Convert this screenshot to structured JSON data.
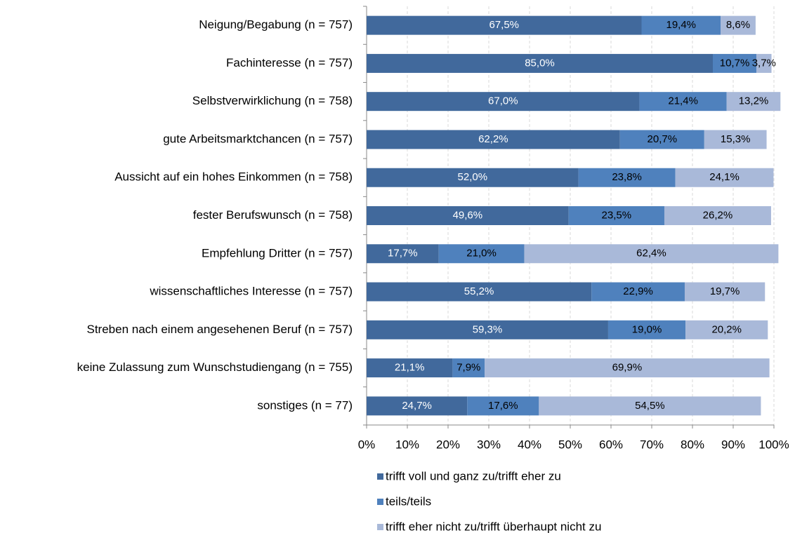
{
  "chart_data": {
    "type": "stacked-bar-horizontal",
    "categories": [
      "Neigung/Begabung (n = 757)",
      "Fachinteresse (n = 757)",
      "Selbstverwirklichung (n = 758)",
      "gute Arbeitsmarktchancen (n = 757)",
      "Aussicht auf ein hohes Einkommen (n = 758)",
      "fester Berufswunsch (n = 758)",
      "Empfehlung Dritter (n = 757)",
      "wissenschaftliches Interesse (n = 757)",
      "Streben nach einem angesehenen Beruf (n = 757)",
      "keine Zulassung zum Wunschstudiengang (n = 755)",
      "sonstiges (n = 77)"
    ],
    "series": [
      {
        "name": "trifft voll und ganz zu/trifft eher zu",
        "color": "#41699c",
        "label_color": "#ffffff",
        "values": [
          67.5,
          85.0,
          67.0,
          62.2,
          52.0,
          49.6,
          17.7,
          55.2,
          59.3,
          21.1,
          24.7
        ],
        "value_labels": [
          "67,5%",
          "85,0%",
          "67,0%",
          "62,2%",
          "52,0%",
          "49,6%",
          "17,7%",
          "55,2%",
          "59,3%",
          "21,1%",
          "24,7%"
        ]
      },
      {
        "name": "teils/teils",
        "color": "#4f81bd",
        "label_color": "#000000",
        "values": [
          19.4,
          10.7,
          21.4,
          20.7,
          23.8,
          23.5,
          21.0,
          22.9,
          19.0,
          7.9,
          17.6
        ],
        "value_labels": [
          "19,4%",
          "10,7%",
          "21,4%",
          "20,7%",
          "23,8%",
          "23,5%",
          "21,0%",
          "22,9%",
          "19,0%",
          "7,9%",
          "17,6%"
        ]
      },
      {
        "name": "trifft eher nicht zu/trifft überhaupt nicht zu",
        "color": "#a9b9d9",
        "label_color": "#000000",
        "values": [
          8.6,
          3.7,
          13.2,
          15.3,
          24.1,
          26.2,
          62.4,
          19.7,
          20.2,
          69.9,
          54.5
        ],
        "value_labels": [
          "8,6%",
          "3,7%",
          "13,2%",
          "15,3%",
          "24,1%",
          "26,2%",
          "62,4%",
          "19,7%",
          "20,2%",
          "69,9%",
          "54,5%"
        ]
      }
    ],
    "xlim": [
      0,
      100
    ],
    "xticks": [
      {
        "value": 0,
        "label": "0%"
      },
      {
        "value": 10,
        "label": "10%"
      },
      {
        "value": 20,
        "label": "20%"
      },
      {
        "value": 30,
        "label": "30%"
      },
      {
        "value": 40,
        "label": "40%"
      },
      {
        "value": 50,
        "label": "50%"
      },
      {
        "value": 60,
        "label": "60%"
      },
      {
        "value": 70,
        "label": "70%"
      },
      {
        "value": 80,
        "label": "80%"
      },
      {
        "value": 90,
        "label": "90%"
      },
      {
        "value": 100,
        "label": "100%"
      }
    ],
    "grid": true,
    "legend": "bottom"
  }
}
